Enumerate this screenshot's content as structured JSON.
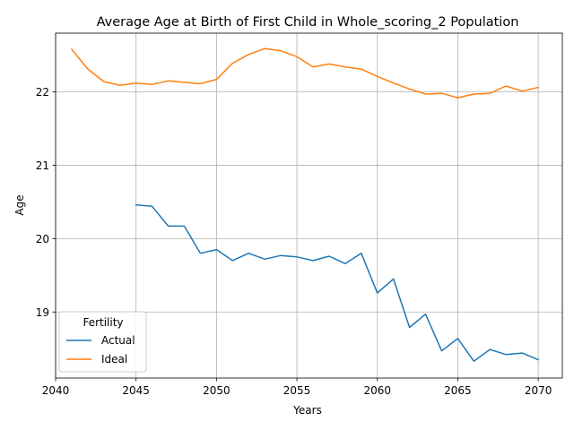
{
  "chart_data": {
    "type": "line",
    "title": "Average Age at Birth of First Child in Whole_scoring_2 Population",
    "xlabel": "Years",
    "ylabel": "Age",
    "xlim": [
      2040,
      2071.5
    ],
    "ylim": [
      18.1,
      22.8
    ],
    "xticks": [
      2040,
      2045,
      2050,
      2055,
      2060,
      2065,
      2070
    ],
    "yticks": [
      19,
      20,
      21,
      22
    ],
    "grid": true,
    "legend": {
      "title": "Fertility",
      "placement": "lower-left"
    },
    "series": [
      {
        "name": "Actual",
        "color": "#1f77b4",
        "x": [
          2045,
          2046,
          2047,
          2048,
          2049,
          2050,
          2051,
          2052,
          2053,
          2054,
          2055,
          2056,
          2057,
          2058,
          2059,
          2060,
          2061,
          2062,
          2063,
          2064,
          2065,
          2066,
          2067,
          2068,
          2069,
          2070
        ],
        "y": [
          20.46,
          20.44,
          20.17,
          20.17,
          19.8,
          19.85,
          19.7,
          19.8,
          19.72,
          19.77,
          19.75,
          19.7,
          19.76,
          19.66,
          19.8,
          19.26,
          19.45,
          18.79,
          18.97,
          18.47,
          18.64,
          18.33,
          18.49,
          18.42,
          18.44,
          18.35
        ]
      },
      {
        "name": "Ideal",
        "color": "#ff7f0e",
        "x": [
          2041,
          2042,
          2043,
          2044,
          2045,
          2046,
          2047,
          2048,
          2049,
          2050,
          2051,
          2052,
          2053,
          2054,
          2055,
          2056,
          2057,
          2058,
          2059,
          2060,
          2061,
          2062,
          2063,
          2064,
          2065,
          2066,
          2067,
          2068,
          2069,
          2070
        ],
        "y": [
          22.58,
          22.31,
          22.14,
          22.09,
          22.12,
          22.1,
          22.15,
          22.13,
          22.11,
          22.17,
          22.39,
          22.51,
          22.59,
          22.56,
          22.48,
          22.34,
          22.38,
          22.34,
          22.31,
          22.21,
          22.12,
          22.04,
          21.97,
          21.98,
          21.92,
          21.97,
          21.98,
          22.08,
          22.01,
          22.06
        ]
      }
    ]
  }
}
